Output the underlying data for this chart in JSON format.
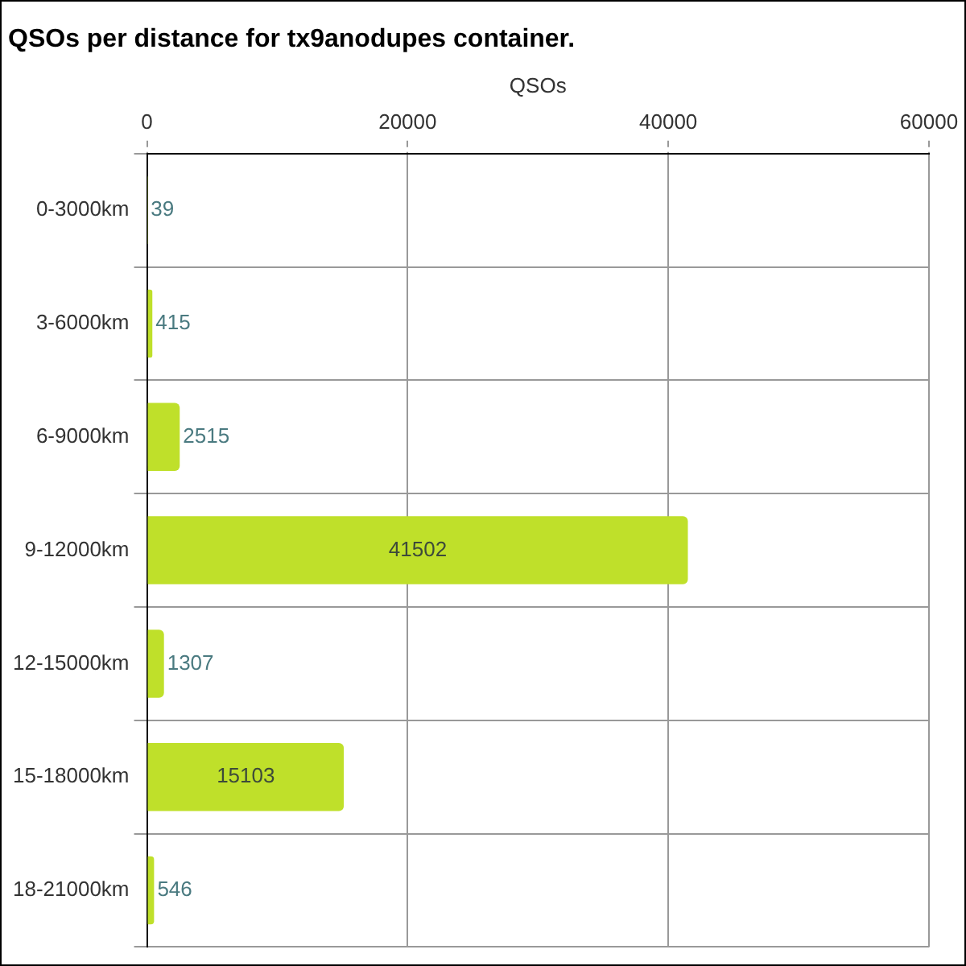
{
  "chart_data": {
    "type": "bar",
    "title": "QSOs per distance for tx9anodupes container.",
    "xlabel": "QSOs",
    "orientation": "horizontal",
    "categories": [
      "0-3000km",
      "3-6000km",
      "6-9000km",
      "9-12000km",
      "12-15000km",
      "15-18000km",
      "18-21000km"
    ],
    "values": [
      39,
      415,
      2515,
      41502,
      1307,
      15103,
      546
    ],
    "color": "#bfe02a",
    "xlim": [
      0,
      60000
    ],
    "xticks": [
      0,
      20000,
      40000,
      60000
    ],
    "grid": true,
    "data_labels": true
  }
}
